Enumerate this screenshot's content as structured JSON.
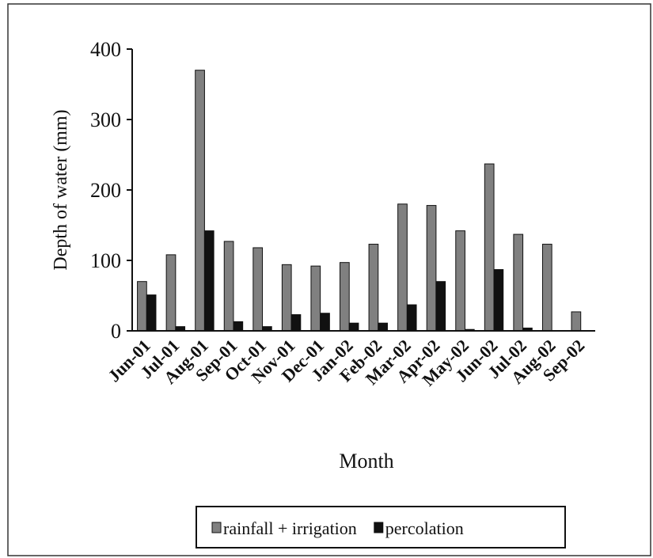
{
  "chart_data": {
    "type": "bar",
    "x_label": "Month",
    "y_label": "Depth of water (mm)",
    "categories": [
      "Jun-01",
      "Jul-01",
      "Aug-01",
      "Sep-01",
      "Oct-01",
      "Nov-01",
      "Dec-01",
      "Jan-02",
      "Feb-02",
      "Mar-02",
      "Apr-02",
      "May-02",
      "Jun-02",
      "Jul-02",
      "Aug-02",
      "Sep-02"
    ],
    "series": [
      {
        "name": "rainfall + irrigation",
        "color": "#808080",
        "values": [
          70,
          108,
          370,
          127,
          118,
          94,
          92,
          97,
          123,
          180,
          178,
          142,
          237,
          137,
          123,
          27
        ]
      },
      {
        "name": "percolation",
        "color": "#111111",
        "values": [
          51,
          6,
          142,
          13,
          6,
          23,
          25,
          11,
          11,
          37,
          70,
          2,
          87,
          4,
          0,
          0
        ]
      }
    ],
    "ylim": [
      0,
      400
    ],
    "yticks": [
      0,
      100,
      200,
      300,
      400
    ],
    "legend": "bottom"
  }
}
